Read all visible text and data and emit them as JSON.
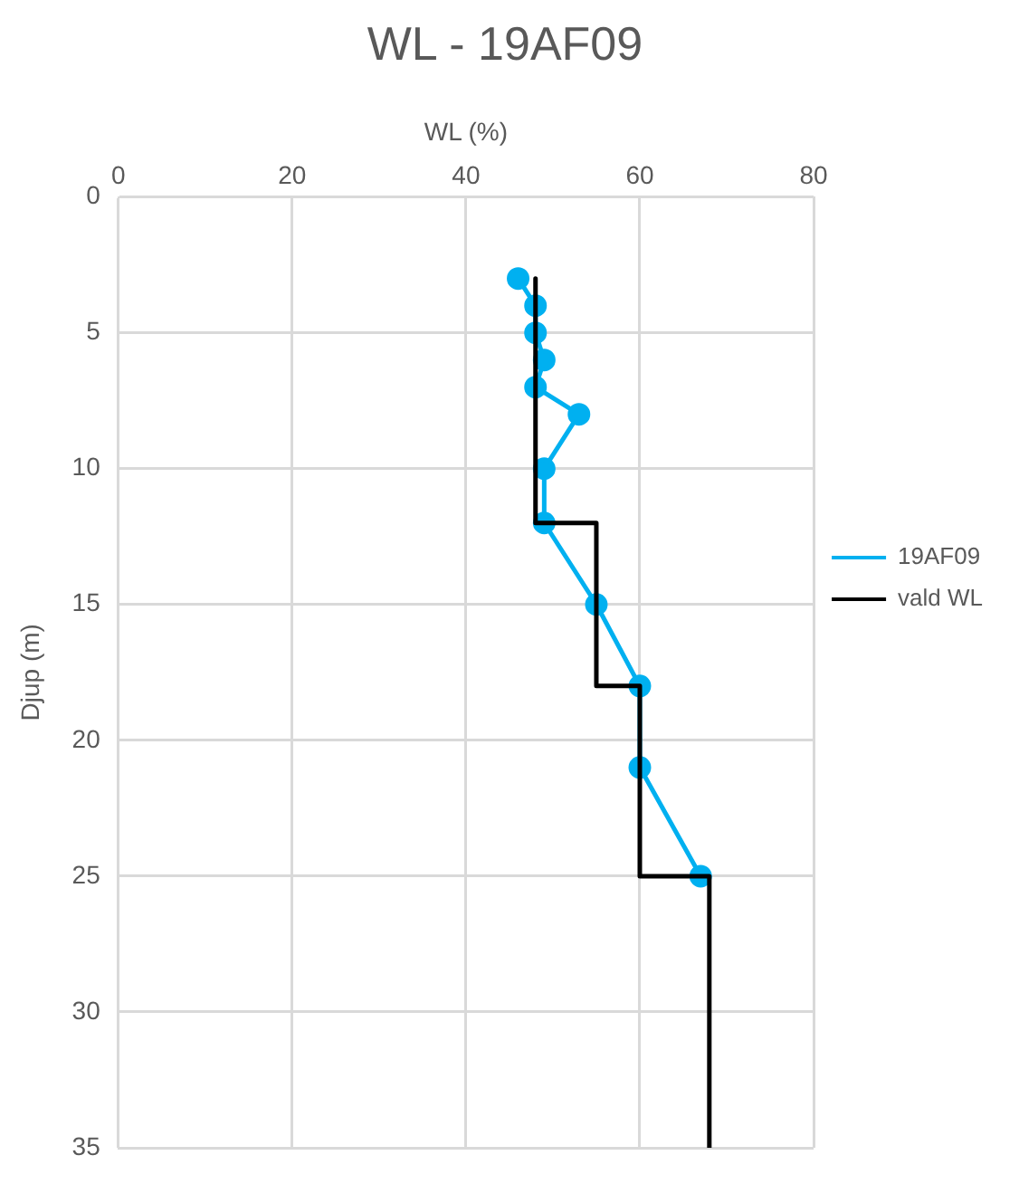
{
  "chart_data": {
    "type": "line",
    "title": "WL - 19AF09",
    "xlabel": "WL (%)",
    "ylabel": "Djup (m)",
    "xlim": [
      0,
      80
    ],
    "xticks": [
      0,
      20,
      40,
      60,
      80
    ],
    "ylim": [
      35,
      0
    ],
    "yticks": [
      0,
      5,
      10,
      15,
      20,
      25,
      30,
      35
    ],
    "grid": true,
    "legend": "right",
    "series": [
      {
        "name": "19AF09",
        "color": "#00b0f0",
        "marker": "circle",
        "x": [
          46,
          48,
          48,
          49,
          48,
          53,
          49,
          49,
          55,
          60,
          60,
          67
        ],
        "values": [
          3,
          4,
          5,
          6,
          7,
          8,
          10,
          12,
          15,
          18,
          21,
          25
        ]
      },
      {
        "name": "vald WL",
        "color": "#000000",
        "marker": "none",
        "x": [
          48,
          48,
          55,
          55,
          60,
          60,
          68,
          68
        ],
        "values": [
          3,
          12,
          12,
          18,
          18,
          25,
          25,
          35
        ]
      }
    ]
  }
}
